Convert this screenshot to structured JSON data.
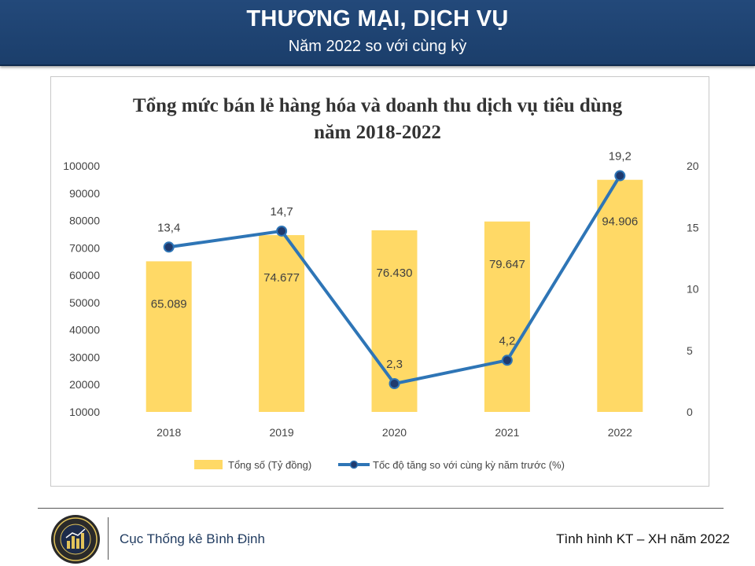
{
  "header": {
    "title": "THƯƠNG MẠI, DỊCH VỤ",
    "subtitle": "Năm 2022 so với cùng kỳ"
  },
  "chart": {
    "title_line1": "Tổng mức bán lẻ hàng hóa và doanh thu dịch vụ tiêu dùng",
    "title_line2": "năm 2018-2022"
  },
  "chart_data": {
    "type": "bar",
    "title": "Tổng mức bán lẻ hàng hóa và doanh thu dịch vụ tiêu dùng năm 2018-2022",
    "categories": [
      "2018",
      "2019",
      "2020",
      "2021",
      "2022"
    ],
    "series": [
      {
        "name": "Tổng số (Tỷ đồng)",
        "type": "bar",
        "axis": "left",
        "values": [
          65089,
          74677,
          76430,
          79647,
          94906
        ],
        "labels": [
          "65.089",
          "74.677",
          "76.430",
          "79.647",
          "94.906"
        ],
        "color": "#ffd966"
      },
      {
        "name": "Tốc độ tăng so với cùng kỳ năm trước (%)",
        "type": "line",
        "axis": "right",
        "values": [
          13.4,
          14.7,
          2.3,
          4.2,
          19.2
        ],
        "labels": [
          "13,4",
          "14,7",
          "2,3",
          "4,2",
          "19,2"
        ],
        "color": "#2e75b6",
        "marker_color": "#1f3a6e"
      }
    ],
    "y_left": {
      "min": 10000,
      "max": 100000,
      "ticks": [
        "100000",
        "90000",
        "80000",
        "70000",
        "60000",
        "50000",
        "40000",
        "30000",
        "20000",
        "10000"
      ]
    },
    "y_right": {
      "min": 0,
      "max": 20,
      "ticks": [
        "20",
        "15",
        "10",
        "5",
        "0"
      ]
    },
    "grid": false,
    "legend_position": "bottom"
  },
  "footer": {
    "left": "Cục Thống kê Bình Định",
    "right": "Tình hình KT – XH năm 2022"
  },
  "colors": {
    "header_bg": "#1b3e6b",
    "bar": "#ffd966",
    "line": "#2e75b6"
  }
}
